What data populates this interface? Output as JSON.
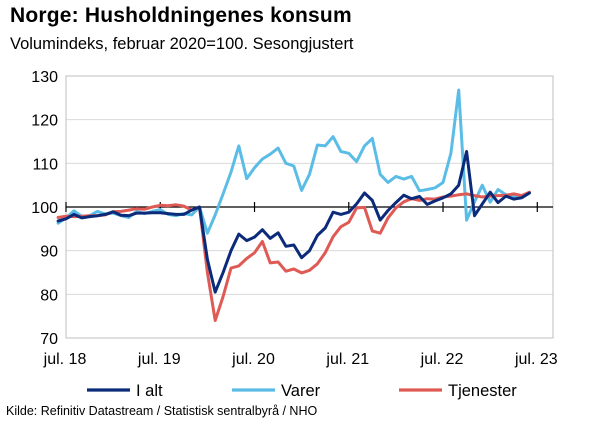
{
  "header": {
    "title": "Norge:  Husholdningenes konsum",
    "subtitle": "Volumindeks, februar 2020=100. Sesongjustert"
  },
  "footer": {
    "source": "Kilde: Refinitiv Datastream / Statistisk sentralbyrå / NHO"
  },
  "colors": {
    "i_alt": "#0b2a7a",
    "varer": "#5bbde6",
    "tjenester": "#e05a55"
  },
  "chart_data": {
    "type": "line",
    "ylim": [
      70,
      130
    ],
    "yticks": [
      70,
      80,
      90,
      100,
      110,
      120,
      130
    ],
    "reference_line": 100,
    "xlim": [
      "2018-07",
      "2023-09"
    ],
    "xticks": [
      {
        "label": "jul. 18",
        "date": "2018-07"
      },
      {
        "label": "jul. 19",
        "date": "2019-07"
      },
      {
        "label": "jul. 20",
        "date": "2020-07"
      },
      {
        "label": "jul. 21",
        "date": "2021-07"
      },
      {
        "label": "jul. 22",
        "date": "2022-07"
      },
      {
        "label": "jul. 23",
        "date": "2023-07"
      }
    ],
    "legend_position": "bottom",
    "series": [
      {
        "name": "I alt",
        "start": "2018-06",
        "values": [
          96.8,
          97.3,
          98.3,
          97.5,
          97.8,
          98.0,
          98.3,
          98.9,
          98.1,
          98.0,
          98.6,
          98.6,
          98.7,
          98.7,
          98.5,
          98.3,
          98.3,
          99.3,
          100.0,
          88.0,
          80.5,
          85.0,
          90.0,
          93.8,
          92.3,
          93.1,
          94.8,
          92.8,
          94.1,
          91.0,
          91.3,
          88.4,
          90.0,
          93.5,
          95.2,
          98.8,
          98.3,
          98.8,
          100.7,
          103.2,
          101.5,
          97.0,
          99.2,
          101.0,
          102.7,
          101.9,
          102.4,
          100.6,
          101.4,
          102.1,
          103.0,
          105.0,
          112.7,
          98.0,
          100.7,
          103.4,
          101.0,
          102.5,
          101.8,
          102.1,
          103.2
        ]
      },
      {
        "name": "Varer",
        "start": "2018-06",
        "values": [
          96.3,
          97.5,
          99.1,
          97.9,
          98.0,
          99.0,
          98.4,
          98.6,
          98.0,
          97.6,
          99.0,
          98.5,
          99.0,
          99.4,
          98.3,
          98.0,
          98.5,
          98.2,
          100.0,
          94.0,
          98.2,
          103.0,
          108.0,
          114.0,
          106.5,
          109.0,
          111.0,
          112.1,
          113.5,
          110.0,
          109.4,
          103.8,
          107.5,
          114.2,
          114.0,
          116.1,
          112.7,
          112.3,
          110.4,
          114.0,
          115.7,
          107.5,
          105.6,
          107.0,
          106.4,
          107.0,
          103.7,
          104.0,
          104.4,
          105.6,
          112.3,
          126.8,
          97.0,
          101.2,
          105.0,
          101.1,
          104.0,
          102.8,
          102.3,
          102.3,
          103.2
        ]
      },
      {
        "name": "Tjenester",
        "start": "2018-06",
        "values": [
          97.6,
          97.9,
          97.8,
          97.9,
          98.0,
          98.0,
          98.2,
          98.9,
          99.0,
          99.3,
          99.6,
          99.5,
          100.0,
          100.4,
          100.3,
          100.5,
          100.2,
          99.3,
          100.0,
          85.0,
          74.0,
          79.5,
          86.0,
          86.5,
          88.2,
          89.5,
          92.1,
          87.2,
          87.4,
          85.3,
          85.8,
          84.9,
          85.5,
          87.0,
          89.5,
          93.2,
          95.5,
          96.5,
          99.8,
          99.9,
          94.5,
          94.0,
          97.5,
          99.8,
          101.2,
          101.9,
          101.5,
          101.9,
          101.8,
          102.3,
          102.5,
          102.8,
          103.0,
          102.6,
          102.3,
          102.5,
          102.6,
          102.7,
          103.0,
          102.6,
          103.4
        ]
      }
    ]
  }
}
